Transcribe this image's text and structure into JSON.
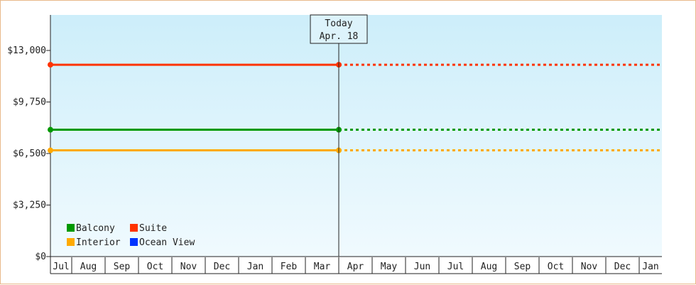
{
  "chart_data": {
    "type": "line",
    "today_marker": {
      "title": "Today",
      "date": "Apr. 18"
    },
    "y_ticks": [
      {
        "value": 0,
        "label": "$0"
      },
      {
        "value": 3250,
        "label": "$3,250"
      },
      {
        "value": 6500,
        "label": "$6,500"
      },
      {
        "value": 9750,
        "label": "$9,750"
      },
      {
        "value": 13000,
        "label": "$13,000"
      }
    ],
    "ylim": [
      0,
      13000
    ],
    "x_months": [
      "Jul",
      "Aug",
      "Sep",
      "Oct",
      "Nov",
      "Dec",
      "Jan",
      "Feb",
      "Mar",
      "Apr",
      "May",
      "Jun",
      "Jul",
      "Aug",
      "Sep",
      "Oct",
      "Nov",
      "Dec",
      "Jan"
    ],
    "series": [
      {
        "name": "Suite",
        "color": "#ff3300",
        "values": [
          12100,
          12100
        ],
        "projected": 12100
      },
      {
        "name": "Balcony",
        "color": "#009900",
        "values": [
          8000,
          8000
        ],
        "projected": 8000
      },
      {
        "name": "Interior",
        "color": "#ffaa00",
        "values": [
          6700,
          6700
        ],
        "projected": 6700
      },
      {
        "name": "Ocean View",
        "color": "#0033ff",
        "values": [],
        "projected": null
      }
    ],
    "legend": {
      "placement": "bottom-left",
      "items": [
        {
          "name": "Balcony",
          "color": "#009900"
        },
        {
          "name": "Suite",
          "color": "#ff3300"
        },
        {
          "name": "Interior",
          "color": "#ffaa00"
        },
        {
          "name": "Ocean View",
          "color": "#0033ff"
        }
      ]
    },
    "background_gradient": [
      "#cdeefa",
      "#f0fafe"
    ],
    "grid": false
  }
}
